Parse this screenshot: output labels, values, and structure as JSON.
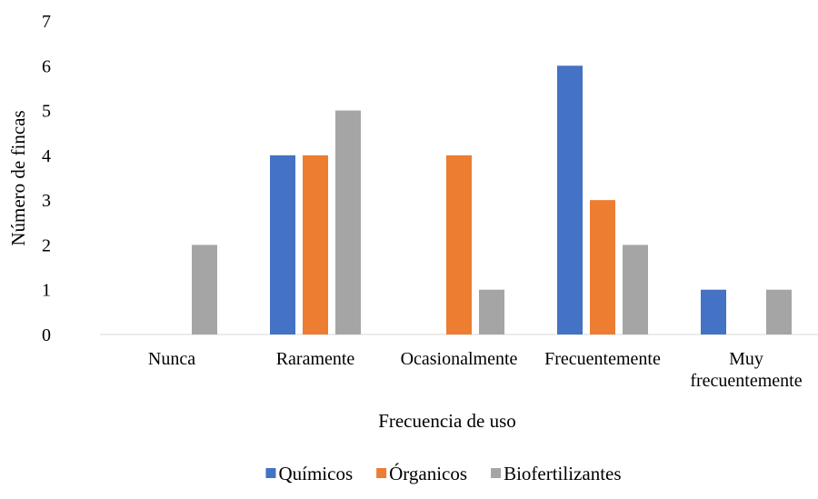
{
  "chart_data": {
    "type": "bar",
    "title": "",
    "xlabel": "Frecuencia de uso",
    "ylabel": "Número de fincas",
    "categories": [
      [
        "Nunca"
      ],
      [
        "Raramente"
      ],
      [
        "Ocasionalmente"
      ],
      [
        "Frecuentemente"
      ],
      [
        "Muy",
        "frecuentemente"
      ]
    ],
    "series": [
      {
        "name": "Químicos",
        "color": "#4472C4",
        "values": [
          0,
          4,
          0,
          6,
          1
        ]
      },
      {
        "name": "Órganicos",
        "color": "#ED7D31",
        "values": [
          0,
          4,
          4,
          3,
          0
        ]
      },
      {
        "name": "Biofertilizantes",
        "color": "#A5A5A5",
        "values": [
          2,
          5,
          1,
          2,
          1
        ]
      }
    ],
    "ylim": [
      0,
      7
    ],
    "yticks": [
      0,
      1,
      2,
      3,
      4,
      5,
      6,
      7
    ],
    "grid": false,
    "legend_position": "bottom"
  }
}
